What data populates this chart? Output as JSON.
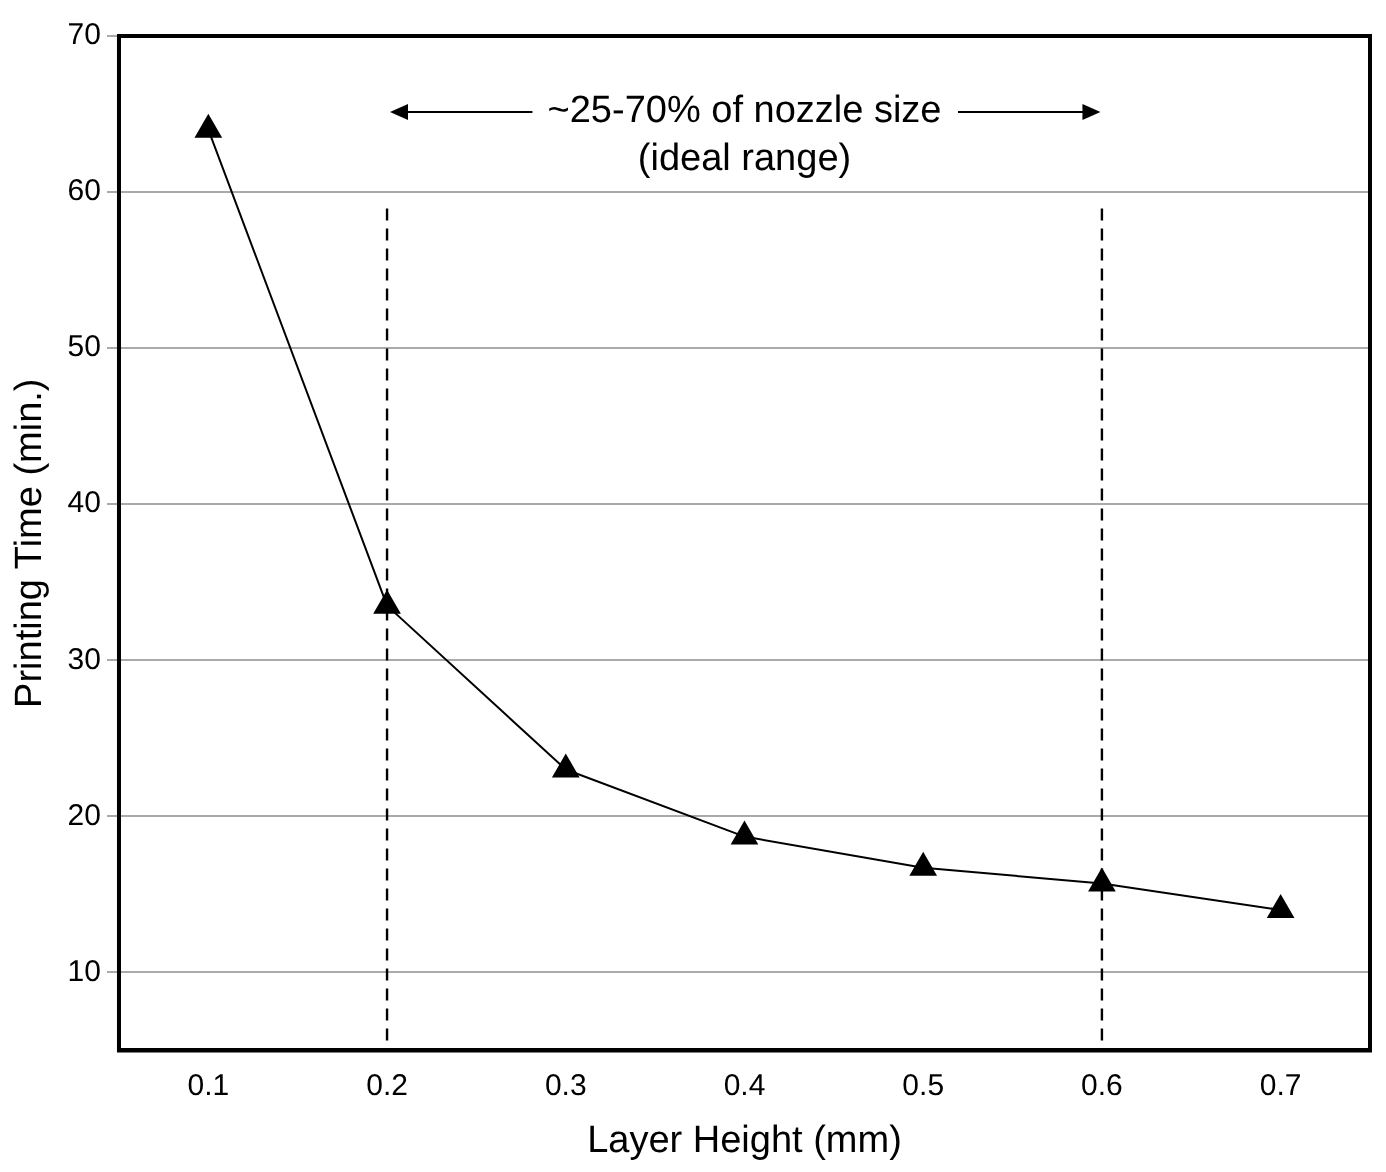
{
  "chart_data": {
    "type": "line",
    "xlabel": "Layer Height (mm)",
    "ylabel": "Printing Time (min.)",
    "x": [
      0.1,
      0.2,
      0.3,
      0.4,
      0.5,
      0.6,
      0.7
    ],
    "series": [
      {
        "color": "#000000",
        "values": [
          64,
          33.5,
          23,
          18.7,
          16.7,
          15.7,
          14
        ]
      }
    ],
    "xlim": [
      0.05,
      0.75
    ],
    "xticks": [
      0.1,
      0.2,
      0.3,
      0.4,
      0.5,
      0.6,
      0.7
    ],
    "ylim": [
      5,
      70
    ],
    "yticks": [
      10,
      20,
      30,
      40,
      50,
      60,
      70
    ],
    "grid": "y",
    "legend": false,
    "marker": "triangle",
    "line_style": "solid",
    "ref_lines": [
      {
        "axis": "x",
        "value": 0.2,
        "line_style": "dashed",
        "color": "#000000"
      },
      {
        "axis": "x",
        "value": 0.6,
        "line_style": "dashed",
        "color": "#000000"
      }
    ],
    "annotations": [
      "~25-70% of nozzle size\n(ideal range)"
    ]
  }
}
